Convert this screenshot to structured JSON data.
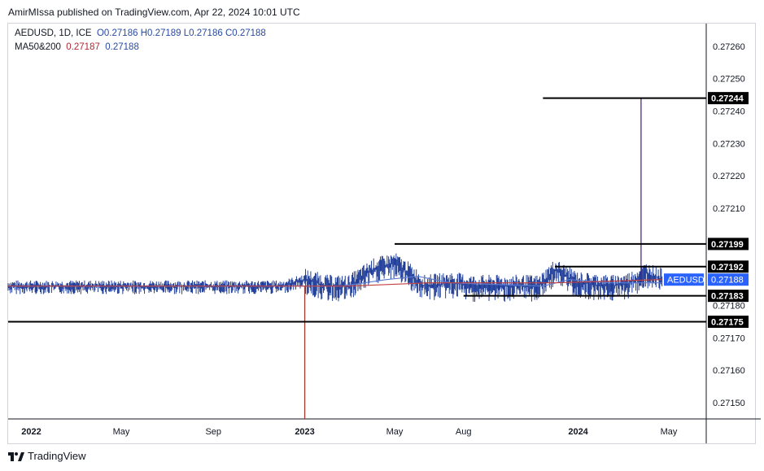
{
  "header": {
    "author": "AmirMIssa",
    "published_text": "published on TradingView.com, Apr 22, 2024 10:01 UTC"
  },
  "legend": {
    "symbol": "AEDUSD, 1D, ICE",
    "open": "O0.27186",
    "high": "H0.27189",
    "low": "L0.27186",
    "close": "C0.27188",
    "ma_label": "MA50&200",
    "ma50_value": "0.27187",
    "ma200_value": "0.27188"
  },
  "footer": {
    "brand": "TradingView",
    "logo": "tradingview-logo"
  },
  "colors": {
    "candle": "#1f3d99",
    "ma50": "#c2403f",
    "ma200": "#5b7bd0",
    "spike": "#4a2c7a",
    "low_wick": "#9e3b2e",
    "level": "#000000",
    "price_badge": "#2962ff"
  },
  "chart_data": {
    "type": "line",
    "title": "",
    "symbol": "AEDUSD",
    "timeframe": "1D",
    "exchange": "ICE",
    "ylim": [
      0.27145,
      0.27267
    ],
    "y_ticks": [
      "0.27260",
      "0.27250",
      "0.27240",
      "0.27230",
      "0.27220",
      "0.27210",
      "0.27170",
      "0.27160",
      "0.27150"
    ],
    "price_labels": [
      {
        "text": "0.27244",
        "value": 0.27244,
        "style": "level"
      },
      {
        "text": "0.27199",
        "value": 0.27199,
        "style": "level"
      },
      {
        "text": "0.27192",
        "value": 0.27192,
        "style": "level"
      },
      {
        "text": "0.27188",
        "value": 0.27188,
        "style": "current"
      },
      {
        "text": "0.27183",
        "value": 0.27183,
        "style": "level"
      },
      {
        "text": "0.27180",
        "value": 0.2718,
        "style": "tick"
      },
      {
        "text": "0.27175",
        "value": 0.27175,
        "style": "level"
      }
    ],
    "current_symbol_badge": "AEDUSD",
    "x_ticks": [
      {
        "label": "2022",
        "date": "2022-01-01",
        "bold": true
      },
      {
        "label": "May",
        "date": "2022-05-01",
        "bold": false
      },
      {
        "label": "Sep",
        "date": "2022-09-01",
        "bold": false
      },
      {
        "label": "2023",
        "date": "2023-01-01",
        "bold": true
      },
      {
        "label": "May",
        "date": "2023-05-01",
        "bold": false
      },
      {
        "label": "Aug",
        "date": "2023-08-01",
        "bold": false
      },
      {
        "label": "2024",
        "date": "2024-01-01",
        "bold": true
      },
      {
        "label": "May",
        "date": "2024-05-01",
        "bold": false
      }
    ],
    "x_range": [
      "2021-12-01",
      "2024-06-20"
    ],
    "horizontal_levels": [
      {
        "value": 0.27244,
        "from": "2023-11-15",
        "to": "2024-06-20"
      },
      {
        "value": 0.27199,
        "from": "2023-05-01",
        "to": "2024-06-20"
      },
      {
        "value": 0.27192,
        "from": "2023-12-01",
        "to": "2024-06-20"
      },
      {
        "value": 0.27183,
        "from": "2023-08-01",
        "to": "2024-06-20"
      },
      {
        "value": 0.27175,
        "from": "2021-12-01",
        "to": "2024-06-20"
      }
    ],
    "price_series": [
      {
        "date": "2021-12-01",
        "close": 0.27186
      },
      {
        "date": "2022-03-01",
        "close": 0.27186
      },
      {
        "date": "2022-06-01",
        "close": 0.27186
      },
      {
        "date": "2022-09-01",
        "close": 0.27186
      },
      {
        "date": "2022-12-01",
        "close": 0.27186
      },
      {
        "date": "2023-01-01",
        "close": 0.27188
      },
      {
        "date": "2023-02-01",
        "close": 0.27186
      },
      {
        "date": "2023-03-01",
        "close": 0.27186
      },
      {
        "date": "2023-04-01",
        "close": 0.27191
      },
      {
        "date": "2023-05-01",
        "close": 0.27193
      },
      {
        "date": "2023-05-20",
        "close": 0.2719
      },
      {
        "date": "2023-06-10",
        "close": 0.27186
      },
      {
        "date": "2023-07-15",
        "close": 0.27187
      },
      {
        "date": "2023-08-15",
        "close": 0.27186
      },
      {
        "date": "2023-10-01",
        "close": 0.27186
      },
      {
        "date": "2023-11-10",
        "close": 0.27186
      },
      {
        "date": "2023-12-01",
        "close": 0.27191
      },
      {
        "date": "2024-01-01",
        "close": 0.27187
      },
      {
        "date": "2024-02-15",
        "close": 0.27186
      },
      {
        "date": "2024-03-10",
        "close": 0.27187
      },
      {
        "date": "2024-04-01",
        "close": 0.2719
      },
      {
        "date": "2024-04-22",
        "close": 0.27188
      }
    ],
    "extreme_wicks": [
      {
        "date": "2023-01-01",
        "low": 0.27145,
        "color": "low_wick"
      },
      {
        "date": "2024-03-25",
        "high": 0.27244,
        "color": "spike"
      }
    ],
    "series": [
      {
        "name": "MA50",
        "values": [
          {
            "date": "2021-12-01",
            "value": 0.27186
          },
          {
            "date": "2022-12-15",
            "value": 0.27186
          },
          {
            "date": "2023-02-20",
            "value": 0.27186
          },
          {
            "date": "2023-04-20",
            "value": 0.27188
          },
          {
            "date": "2023-06-01",
            "value": 0.27189
          },
          {
            "date": "2023-07-15",
            "value": 0.27187
          },
          {
            "date": "2023-11-15",
            "value": 0.27186
          },
          {
            "date": "2023-12-20",
            "value": 0.27188
          },
          {
            "date": "2024-02-15",
            "value": 0.27187
          },
          {
            "date": "2024-04-22",
            "value": 0.27187
          }
        ]
      },
      {
        "name": "MA200",
        "values": [
          {
            "date": "2021-12-01",
            "value": 0.27186
          },
          {
            "date": "2023-03-01",
            "value": 0.27186
          },
          {
            "date": "2023-06-15",
            "value": 0.27187
          },
          {
            "date": "2023-12-01",
            "value": 0.27187
          },
          {
            "date": "2024-04-22",
            "value": 0.27188
          }
        ]
      }
    ]
  }
}
